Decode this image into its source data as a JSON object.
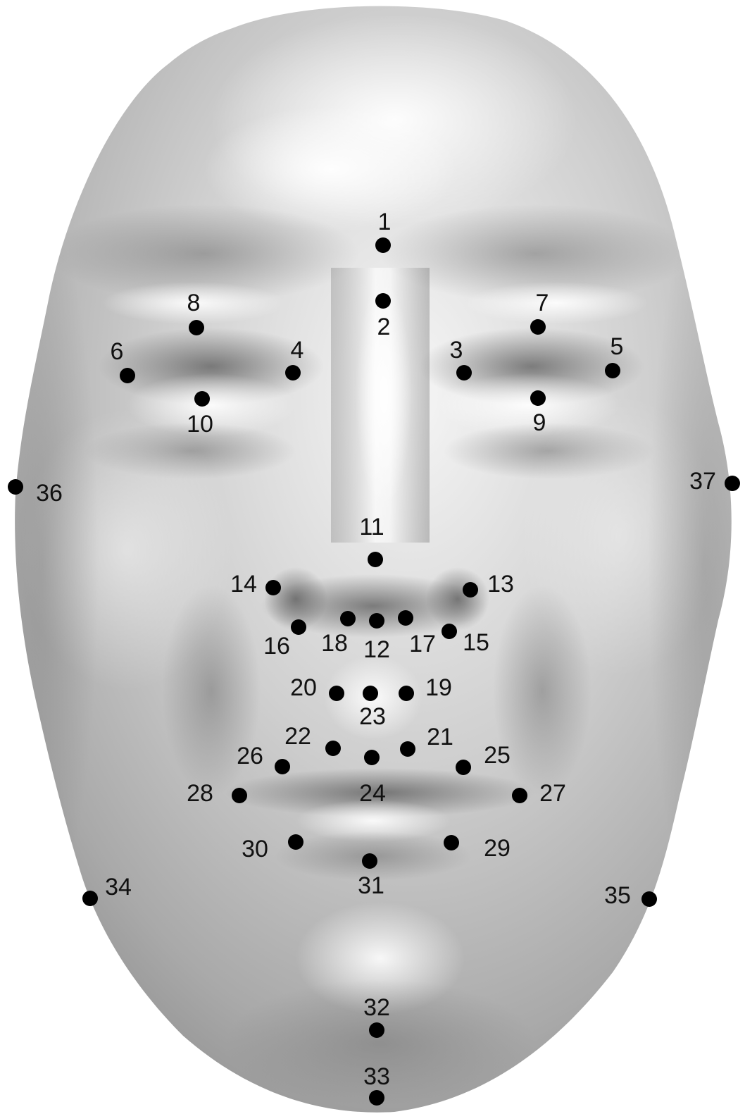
{
  "figure": {
    "subject": "3D shaded face surface (frontal view) with anthropometric landmark points",
    "colors": {
      "background": "#ffffff",
      "face_light": "#f4f4f4",
      "face_mid": "#bdbdbd",
      "face_dark": "#6e6e6e",
      "landmark": "#000000",
      "label": "#111111"
    }
  },
  "landmarks": [
    {
      "id": "1",
      "label": "1"
    },
    {
      "id": "2",
      "label": "2"
    },
    {
      "id": "3",
      "label": "3"
    },
    {
      "id": "4",
      "label": "4"
    },
    {
      "id": "5",
      "label": "5"
    },
    {
      "id": "6",
      "label": "6"
    },
    {
      "id": "7",
      "label": "7"
    },
    {
      "id": "8",
      "label": "8"
    },
    {
      "id": "9",
      "label": "9"
    },
    {
      "id": "10",
      "label": "10"
    },
    {
      "id": "11",
      "label": "11"
    },
    {
      "id": "12",
      "label": "12"
    },
    {
      "id": "13",
      "label": "13"
    },
    {
      "id": "14",
      "label": "14"
    },
    {
      "id": "15",
      "label": "15"
    },
    {
      "id": "16",
      "label": "16"
    },
    {
      "id": "17",
      "label": "17"
    },
    {
      "id": "18",
      "label": "18"
    },
    {
      "id": "19",
      "label": "19"
    },
    {
      "id": "20",
      "label": "20"
    },
    {
      "id": "21",
      "label": "21"
    },
    {
      "id": "22",
      "label": "22"
    },
    {
      "id": "23",
      "label": "23"
    },
    {
      "id": "24",
      "label": "24"
    },
    {
      "id": "25",
      "label": "25"
    },
    {
      "id": "26",
      "label": "26"
    },
    {
      "id": "27",
      "label": "27"
    },
    {
      "id": "28",
      "label": "28"
    },
    {
      "id": "29",
      "label": "29"
    },
    {
      "id": "30",
      "label": "30"
    },
    {
      "id": "31",
      "label": "31"
    },
    {
      "id": "32",
      "label": "32"
    },
    {
      "id": "33",
      "label": "33"
    },
    {
      "id": "34",
      "label": "34"
    },
    {
      "id": "35",
      "label": "35"
    },
    {
      "id": "36",
      "label": "36"
    },
    {
      "id": "37",
      "label": "37"
    }
  ]
}
